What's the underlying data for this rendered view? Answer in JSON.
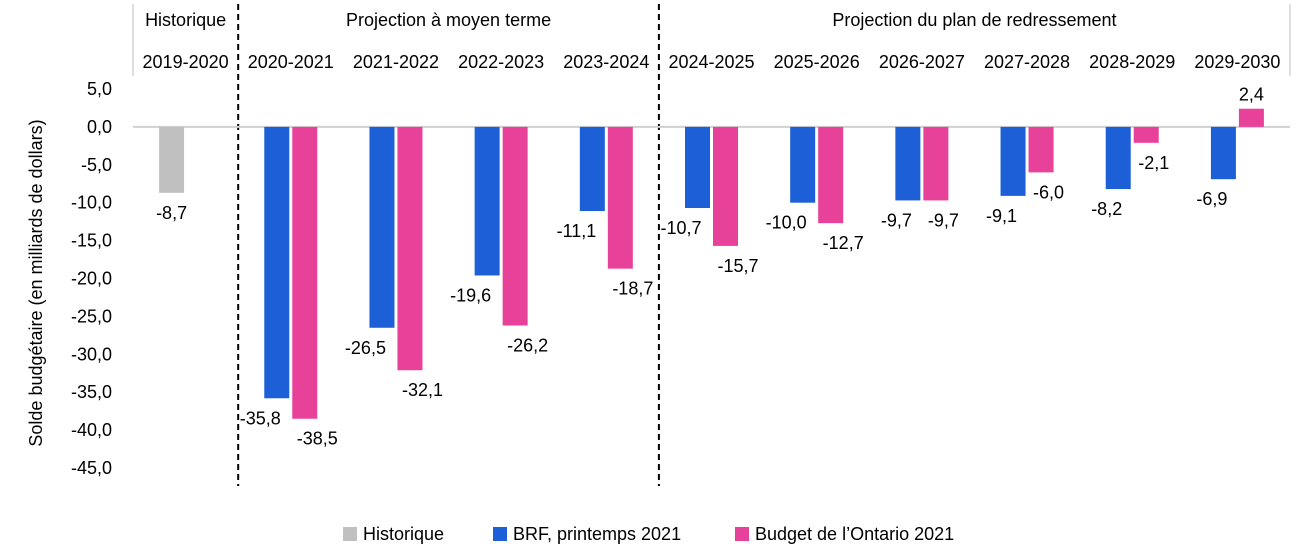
{
  "chart_data": {
    "type": "bar",
    "ylabel": "Solde budgétaire (en milliards de dollars)",
    "ylim": [
      -45,
      5
    ],
    "ytick_step": 5,
    "ytick_labels": [
      "5,0",
      "0,0",
      "-5,0",
      "-10,0",
      "-15,0",
      "-20,0",
      "-25,0",
      "-30,0",
      "-35,0",
      "-40,0",
      "-45,0"
    ],
    "categories": [
      "2019-2020",
      "2020-2021",
      "2021-2022",
      "2022-2023",
      "2023-2024",
      "2024-2025",
      "2025-2026",
      "2026-2027",
      "2027-2028",
      "2028-2029",
      "2029-2030"
    ],
    "sections": [
      {
        "label": "Historique",
        "start": 0,
        "end": 0
      },
      {
        "label": "Projection à moyen terme",
        "start": 1,
        "end": 4
      },
      {
        "label": "Projection du plan de redressement",
        "start": 5,
        "end": 10
      }
    ],
    "series": [
      {
        "name": "Historique",
        "color": "#c0c0c0",
        "values": [
          -8.7,
          null,
          null,
          null,
          null,
          null,
          null,
          null,
          null,
          null,
          null
        ],
        "labels": [
          "-8,7",
          "",
          "",
          "",
          "",
          "",
          "",
          "",
          "",
          "",
          ""
        ]
      },
      {
        "name": "BRF, printemps 2021",
        "color": "#1c5fd6",
        "values": [
          null,
          -35.8,
          -26.5,
          -19.6,
          -11.1,
          -10.7,
          -10.0,
          -9.7,
          -9.1,
          -8.2,
          -6.9
        ],
        "labels": [
          "",
          "-35,8",
          "-26,5",
          "-19,6",
          "-11,1",
          "-10,7",
          "-10,0",
          "-9,7",
          "-9,1",
          "-8,2",
          "-6,9"
        ]
      },
      {
        "name": "Budget de l’Ontario 2021",
        "color": "#e8419a",
        "values": [
          null,
          -38.5,
          -32.1,
          -26.2,
          -18.7,
          -15.7,
          -12.7,
          -9.7,
          -6.0,
          -2.1,
          2.4
        ],
        "labels": [
          "",
          "-38,5",
          "-32,1",
          "-26,2",
          "-18,7",
          "-15,7",
          "-12,7",
          "-9,7",
          "-6,0",
          "-2,1",
          "2,4"
        ]
      }
    ],
    "legend_position": "bottom",
    "grid": false
  }
}
